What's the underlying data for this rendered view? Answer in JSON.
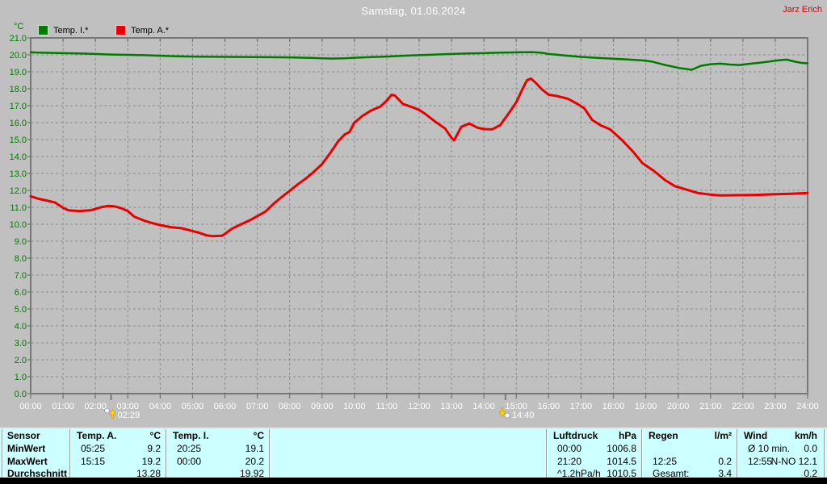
{
  "header": {
    "title": "Samstag, 01.06.2024",
    "author": "Jarz Erich"
  },
  "legend": {
    "unit": "°C",
    "items": [
      {
        "label": "Temp. I.*",
        "color": "#007B00"
      },
      {
        "label": "Temp. A.*",
        "color": "#E80000"
      }
    ]
  },
  "colors": {
    "background": "#C0C0C0",
    "grid": "#8C8C8C",
    "axis_labels_y": "#007B00",
    "axis_labels_x": "#FFFFFF",
    "author_text": "#DE0000",
    "table_background": "#CCFFFF",
    "series_inside": "#007B00",
    "series_outside": "#E80000"
  },
  "chart_data": {
    "type": "line",
    "title": "Samstag, 01.06.2024",
    "ylabel": "°C",
    "ylim": [
      0,
      21
    ],
    "xlim_hours": [
      0,
      24
    ],
    "grid": true,
    "y_ticks": [
      "0.0",
      "1.0",
      "2.0",
      "3.0",
      "4.0",
      "5.0",
      "6.0",
      "7.0",
      "8.0",
      "9.0",
      "10.0",
      "11.0",
      "12.0",
      "13.0",
      "14.0",
      "15.0",
      "16.0",
      "17.0",
      "18.0",
      "19.0",
      "20.0",
      "21.0"
    ],
    "x_ticks": [
      "00:00",
      "01:00",
      "02:00",
      "03:00",
      "04:00",
      "05:00",
      "06:00",
      "07:00",
      "08:00",
      "09:00",
      "10:00",
      "11:00",
      "12:00",
      "13:00",
      "14:00",
      "15:00",
      "16:00",
      "17:00",
      "18:00",
      "19:00",
      "20:00",
      "21:00",
      "22:00",
      "23:00",
      "24:00"
    ],
    "series": [
      {
        "name": "Temp. I.*",
        "color": "#007B00",
        "width": 2.5,
        "points": [
          [
            0,
            20.15
          ],
          [
            0.5,
            20.12
          ],
          [
            1,
            20.1
          ],
          [
            1.5,
            20.08
          ],
          [
            2,
            20.05
          ],
          [
            2.5,
            20.02
          ],
          [
            3,
            20.0
          ],
          [
            3.5,
            19.98
          ],
          [
            4,
            19.95
          ],
          [
            4.5,
            19.92
          ],
          [
            5,
            19.9
          ],
          [
            6,
            19.88
          ],
          [
            7,
            19.87
          ],
          [
            8,
            19.85
          ],
          [
            8.5,
            19.83
          ],
          [
            9,
            19.8
          ],
          [
            9.3,
            19.78
          ],
          [
            9.7,
            19.8
          ],
          [
            10,
            19.83
          ],
          [
            10.5,
            19.87
          ],
          [
            11,
            19.9
          ],
          [
            11.5,
            19.95
          ],
          [
            12,
            19.98
          ],
          [
            12.5,
            20.02
          ],
          [
            13,
            20.05
          ],
          [
            13.5,
            20.08
          ],
          [
            14,
            20.1
          ],
          [
            14.5,
            20.13
          ],
          [
            15,
            20.15
          ],
          [
            15.5,
            20.16
          ],
          [
            15.8,
            20.12
          ],
          [
            16,
            20.05
          ],
          [
            16.3,
            20.0
          ],
          [
            16.7,
            19.93
          ],
          [
            17,
            19.88
          ],
          [
            17.5,
            19.82
          ],
          [
            18,
            19.77
          ],
          [
            18.5,
            19.72
          ],
          [
            18.9,
            19.67
          ],
          [
            19.2,
            19.6
          ],
          [
            19.5,
            19.45
          ],
          [
            19.8,
            19.32
          ],
          [
            20.1,
            19.2
          ],
          [
            20.42,
            19.12
          ],
          [
            20.7,
            19.35
          ],
          [
            21,
            19.45
          ],
          [
            21.3,
            19.48
          ],
          [
            21.6,
            19.43
          ],
          [
            21.9,
            19.4
          ],
          [
            22.2,
            19.47
          ],
          [
            22.5,
            19.53
          ],
          [
            22.8,
            19.6
          ],
          [
            23.1,
            19.68
          ],
          [
            23.35,
            19.72
          ],
          [
            23.6,
            19.6
          ],
          [
            23.8,
            19.53
          ],
          [
            24,
            19.5
          ]
        ]
      },
      {
        "name": "Temp. A.*",
        "color": "#E80000",
        "width": 3,
        "points": [
          [
            0,
            11.65
          ],
          [
            0.25,
            11.5
          ],
          [
            0.5,
            11.4
          ],
          [
            0.75,
            11.28
          ],
          [
            1,
            10.97
          ],
          [
            1.17,
            10.82
          ],
          [
            1.5,
            10.78
          ],
          [
            1.83,
            10.82
          ],
          [
            2,
            10.9
          ],
          [
            2.2,
            11.02
          ],
          [
            2.4,
            11.08
          ],
          [
            2.6,
            11.05
          ],
          [
            2.8,
            10.95
          ],
          [
            3,
            10.78
          ],
          [
            3.2,
            10.45
          ],
          [
            3.5,
            10.22
          ],
          [
            3.75,
            10.07
          ],
          [
            4,
            9.95
          ],
          [
            4.33,
            9.83
          ],
          [
            4.67,
            9.76
          ],
          [
            5,
            9.6
          ],
          [
            5.2,
            9.5
          ],
          [
            5.42,
            9.35
          ],
          [
            5.6,
            9.3
          ],
          [
            5.9,
            9.32
          ],
          [
            6,
            9.43
          ],
          [
            6.2,
            9.72
          ],
          [
            6.5,
            10.0
          ],
          [
            6.75,
            10.22
          ],
          [
            7,
            10.48
          ],
          [
            7.25,
            10.75
          ],
          [
            7.5,
            11.2
          ],
          [
            7.75,
            11.6
          ],
          [
            8,
            11.97
          ],
          [
            8.25,
            12.35
          ],
          [
            8.5,
            12.7
          ],
          [
            8.75,
            13.1
          ],
          [
            9,
            13.55
          ],
          [
            9.25,
            14.2
          ],
          [
            9.5,
            14.9
          ],
          [
            9.7,
            15.3
          ],
          [
            9.85,
            15.45
          ],
          [
            10,
            16.0
          ],
          [
            10.25,
            16.4
          ],
          [
            10.5,
            16.7
          ],
          [
            10.8,
            16.95
          ],
          [
            11,
            17.3
          ],
          [
            11.15,
            17.65
          ],
          [
            11.25,
            17.6
          ],
          [
            11.5,
            17.1
          ],
          [
            11.8,
            16.9
          ],
          [
            12,
            16.75
          ],
          [
            12.2,
            16.5
          ],
          [
            12.5,
            16.05
          ],
          [
            12.8,
            15.65
          ],
          [
            13,
            15.1
          ],
          [
            13.08,
            14.95
          ],
          [
            13.3,
            15.75
          ],
          [
            13.55,
            15.95
          ],
          [
            13.8,
            15.7
          ],
          [
            14,
            15.62
          ],
          [
            14.25,
            15.6
          ],
          [
            14.5,
            15.85
          ],
          [
            14.75,
            16.5
          ],
          [
            15,
            17.2
          ],
          [
            15.17,
            17.9
          ],
          [
            15.33,
            18.5
          ],
          [
            15.45,
            18.6
          ],
          [
            15.6,
            18.35
          ],
          [
            15.8,
            17.95
          ],
          [
            16,
            17.65
          ],
          [
            16.3,
            17.55
          ],
          [
            16.6,
            17.4
          ],
          [
            16.85,
            17.15
          ],
          [
            17.1,
            16.85
          ],
          [
            17.35,
            16.15
          ],
          [
            17.6,
            15.85
          ],
          [
            17.9,
            15.6
          ],
          [
            18.25,
            15.0
          ],
          [
            18.6,
            14.3
          ],
          [
            18.9,
            13.6
          ],
          [
            19.25,
            13.15
          ],
          [
            19.6,
            12.6
          ],
          [
            19.9,
            12.25
          ],
          [
            20.25,
            12.05
          ],
          [
            20.6,
            11.85
          ],
          [
            21,
            11.75
          ],
          [
            21.33,
            11.7
          ],
          [
            22,
            11.72
          ],
          [
            22.5,
            11.74
          ],
          [
            23,
            11.77
          ],
          [
            23.5,
            11.8
          ],
          [
            24,
            11.85
          ]
        ]
      }
    ],
    "markers": [
      {
        "label": "02:29",
        "hour": 2.4833,
        "icon": "sunrise"
      },
      {
        "label": "14:40",
        "hour": 14.6667,
        "icon": "sunset"
      }
    ]
  },
  "table": {
    "row_labels": [
      "Sensor",
      "MinWert",
      "MaxWert",
      "Durchschnitt"
    ],
    "columns": [
      {
        "header": "Temp. A.",
        "unit": "°C",
        "rows": [
          [
            "05:25",
            "9.2"
          ],
          [
            "15:15",
            "19.2"
          ],
          [
            "",
            "13.28"
          ]
        ]
      },
      {
        "header": "Temp. I.",
        "unit": "°C",
        "rows": [
          [
            "20:25",
            "19.1"
          ],
          [
            "00:00",
            "20.2"
          ],
          [
            "",
            "19.92"
          ]
        ]
      },
      {
        "header": "Luftdruck",
        "unit": "hPa",
        "rows": [
          [
            "00:00",
            "1006.8"
          ],
          [
            "21:20",
            "1014.5"
          ],
          [
            "^1.2hPa/h",
            "1010.5"
          ]
        ]
      },
      {
        "header": "Regen",
        "unit": "l/m²",
        "rows": [
          [
            "",
            ""
          ],
          [
            "12:25",
            "0.2"
          ],
          [
            "Gesamt:",
            "3.4"
          ]
        ]
      },
      {
        "header": "Wind",
        "unit": "km/h",
        "rows": [
          [
            "Ø 10 min.",
            "0.0"
          ],
          [
            "12:55",
            "N-NO 12.1"
          ],
          [
            "",
            "0.2"
          ]
        ]
      }
    ]
  }
}
